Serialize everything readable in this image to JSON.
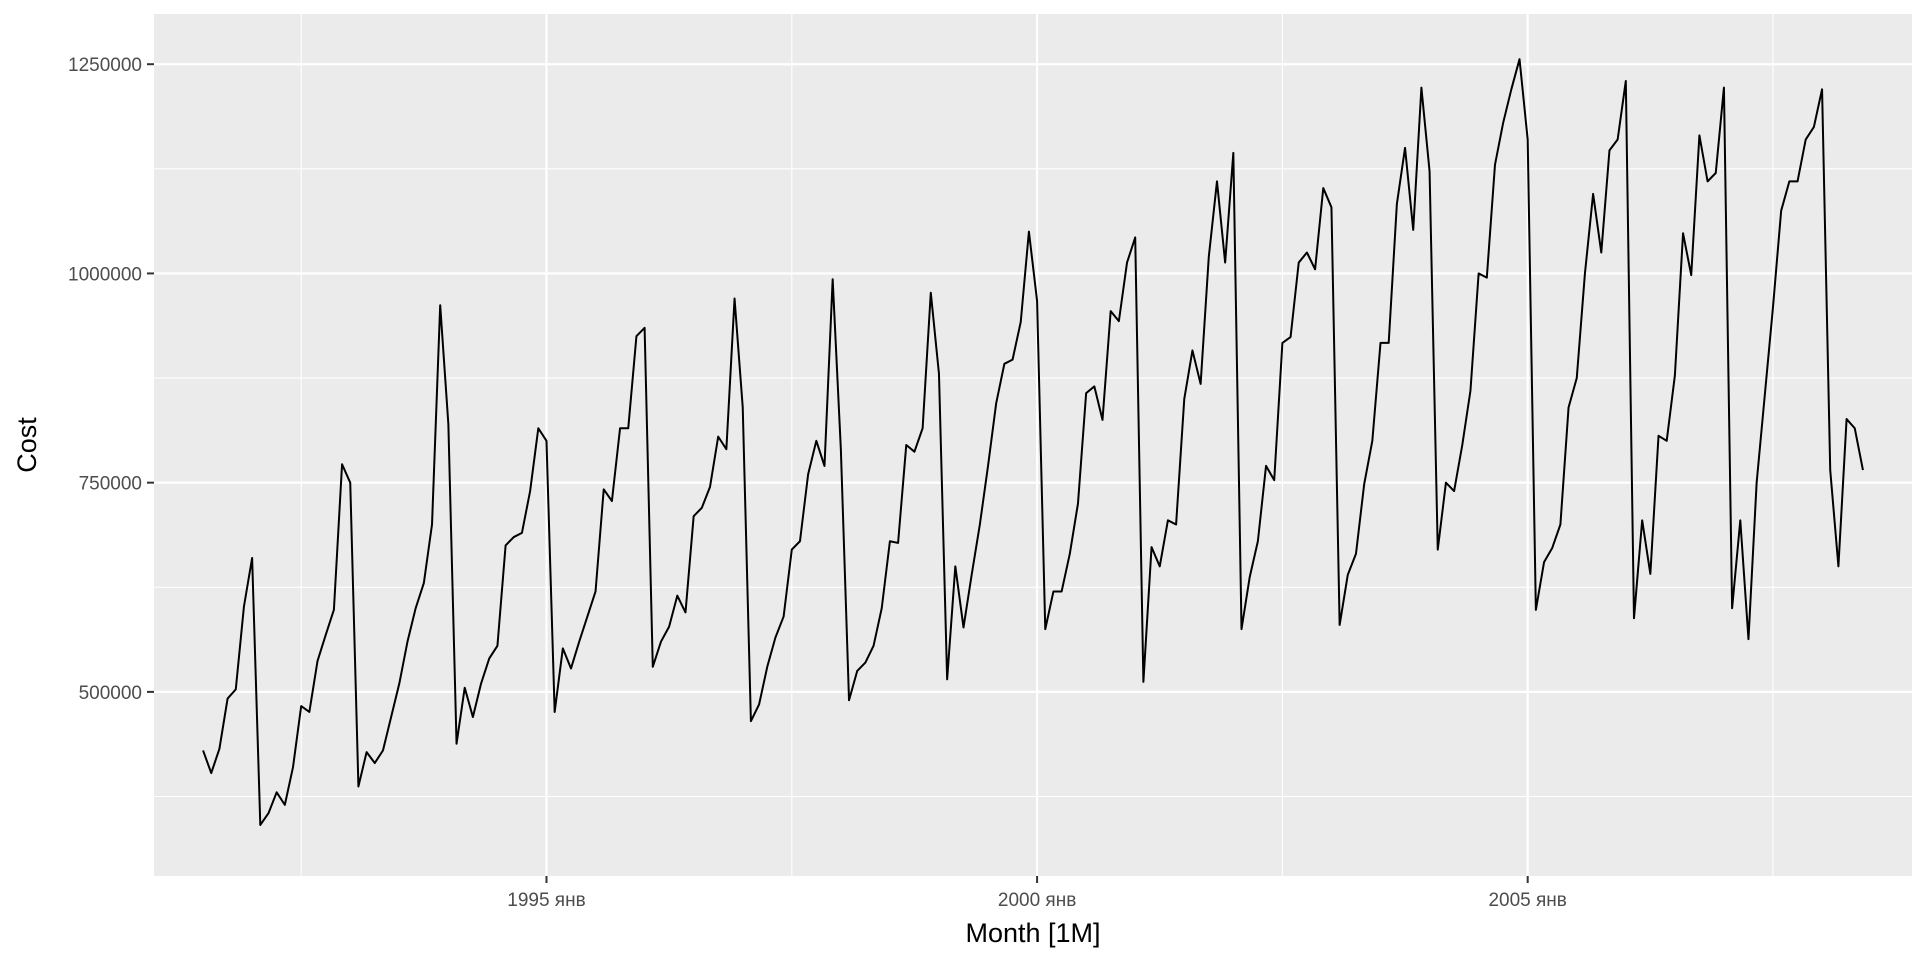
{
  "chart_data": {
    "type": "line",
    "xlabel": "Month [1M]",
    "ylabel": "Cost",
    "x_start": "1991-07",
    "x_end": "2008-06",
    "xlim": [
      "1991-01",
      "2008-12"
    ],
    "ylim": [
      280000,
      1310000
    ],
    "x_ticks": [
      {
        "date": "1995-01",
        "label": "1995 янв"
      },
      {
        "date": "2000-01",
        "label": "2000 янв"
      },
      {
        "date": "2005-01",
        "label": "2005 янв"
      }
    ],
    "x_minor_ticks": [
      "1992-07",
      "1997-07",
      "2002-07",
      "2007-07"
    ],
    "y_ticks": [
      {
        "value": 500000,
        "label": "500000"
      },
      {
        "value": 750000,
        "label": "750000"
      },
      {
        "value": 1000000,
        "label": "1000000"
      },
      {
        "value": 1250000,
        "label": "1250000"
      }
    ],
    "y_minor_ticks": [
      375000,
      625000,
      875000,
      1125000
    ],
    "grid": true,
    "colors": {
      "panel": "#ebebeb",
      "grid": "#ffffff",
      "line": "#000000"
    },
    "series": [
      {
        "values": [
          430000,
          403000,
          432000,
          492000,
          503000,
          602000,
          660000,
          341000,
          355000,
          380000,
          365000,
          410000,
          483000,
          476000,
          537000,
          568000,
          598000,
          772000,
          750000,
          387000,
          428000,
          415000,
          430000,
          470000,
          510000,
          560000,
          600000,
          630000,
          700000,
          962000,
          820000,
          438000,
          505000,
          470000,
          510000,
          540000,
          555000,
          675000,
          685000,
          690000,
          740000,
          815000,
          800000,
          476000,
          552000,
          528000,
          560000,
          590000,
          620000,
          742000,
          728000,
          815000,
          815000,
          925000,
          935000,
          530000,
          560000,
          578000,
          615000,
          595000,
          710000,
          720000,
          745000,
          805000,
          790000,
          970000,
          840000,
          465000,
          485000,
          530000,
          565000,
          590000,
          670000,
          680000,
          760000,
          800000,
          770000,
          993000,
          790000,
          490000,
          525000,
          535000,
          555000,
          600000,
          680000,
          678000,
          795000,
          787000,
          815000,
          977000,
          880000,
          515000,
          650000,
          577000,
          640000,
          700000,
          770000,
          845000,
          892000,
          897000,
          942000,
          1050000,
          967000,
          575000,
          620000,
          620000,
          665000,
          725000,
          857000,
          865000,
          825000,
          955000,
          943000,
          1013000,
          1043000,
          512000,
          673000,
          650000,
          705000,
          700000,
          850000,
          908000,
          868000,
          1020000,
          1110000,
          1013000,
          1144000,
          575000,
          637000,
          680000,
          770000,
          753000,
          917000,
          924000,
          1013000,
          1025000,
          1005000,
          1102000,
          1079000,
          580000,
          640000,
          665000,
          748000,
          800000,
          917000,
          917000,
          1083000,
          1150000,
          1052000,
          1222000,
          1122000,
          670000,
          750000,
          740000,
          795000,
          860000,
          1000000,
          995000,
          1130000,
          1180000,
          1220000,
          1256000,
          1160000,
          598000,
          655000,
          672000,
          700000,
          840000,
          875000,
          1000000,
          1095000,
          1025000,
          1147000,
          1160000,
          1230000,
          588000,
          705000,
          641000,
          806000,
          800000,
          878000,
          1048000,
          998000,
          1165000,
          1110000,
          1120000,
          1222000,
          600000,
          705000,
          563000,
          750000,
          855000,
          960000,
          1075000,
          1110000,
          1110000,
          1160000,
          1175000,
          1220000,
          765000,
          650000,
          826000,
          815000,
          765000
        ]
      }
    ]
  }
}
